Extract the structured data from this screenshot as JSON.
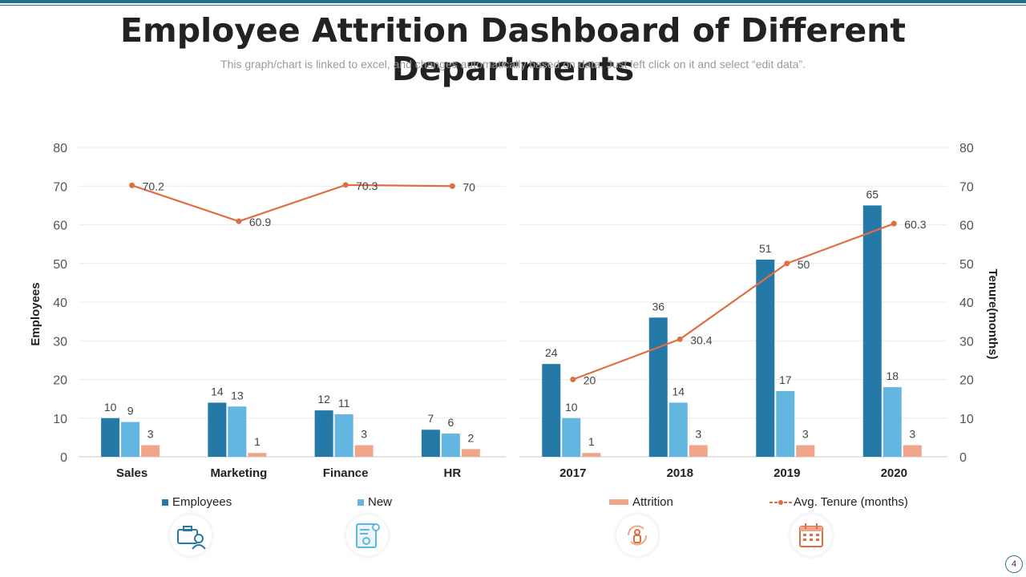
{
  "header": {
    "title": "Employee Attrition Dashboard of Different Departments",
    "subtitle": "This graph/chart is linked to excel, and changes automatically based on data. Just left click on it and select “edit data”."
  },
  "colors": {
    "employees": "#2479a6",
    "new": "#63b6e0",
    "attrition": "#f0a68a",
    "tenure": "#e06e43",
    "accent": "#1f6f92"
  },
  "chart_data": [
    {
      "type": "bar",
      "categories": [
        "Sales",
        "Marketing",
        "Finance",
        "HR"
      ],
      "series": [
        {
          "name": "Employees",
          "values": [
            10,
            14,
            12,
            7
          ]
        },
        {
          "name": "New",
          "values": [
            9,
            13,
            11,
            6
          ]
        },
        {
          "name": "Attrition",
          "values": [
            3,
            1,
            3,
            2
          ]
        },
        {
          "name": "Avg. Tenure (months)",
          "type": "line",
          "values": [
            70.2,
            60.9,
            70.3,
            70
          ]
        }
      ],
      "ylabel": "Employees",
      "ylim": [
        0,
        80
      ],
      "yticks": [
        0,
        10,
        20,
        30,
        40,
        50,
        60,
        70,
        80
      ]
    },
    {
      "type": "bar",
      "categories": [
        "2017",
        "2018",
        "2019",
        "2020"
      ],
      "series": [
        {
          "name": "Employees",
          "values": [
            24,
            36,
            51,
            65
          ]
        },
        {
          "name": "New",
          "values": [
            10,
            14,
            17,
            18
          ]
        },
        {
          "name": "Attrition",
          "values": [
            1,
            3,
            3,
            3
          ]
        },
        {
          "name": "Avg. Tenure (months)",
          "type": "line",
          "values": [
            20,
            30.4,
            50,
            60.3
          ]
        }
      ],
      "ylabel": "Tenure(months)",
      "ylim": [
        0,
        80
      ],
      "yticks": [
        0,
        10,
        20,
        30,
        40,
        50,
        60,
        70,
        80
      ]
    }
  ],
  "legend": {
    "employees": "Employees",
    "new": "New",
    "attrition": "Attrition",
    "tenure": "Avg. Tenure (months)"
  },
  "icons": [
    "briefcase-person-icon",
    "document-profile-icon",
    "people-refresh-icon",
    "calendar-icon"
  ],
  "page_number": "4"
}
